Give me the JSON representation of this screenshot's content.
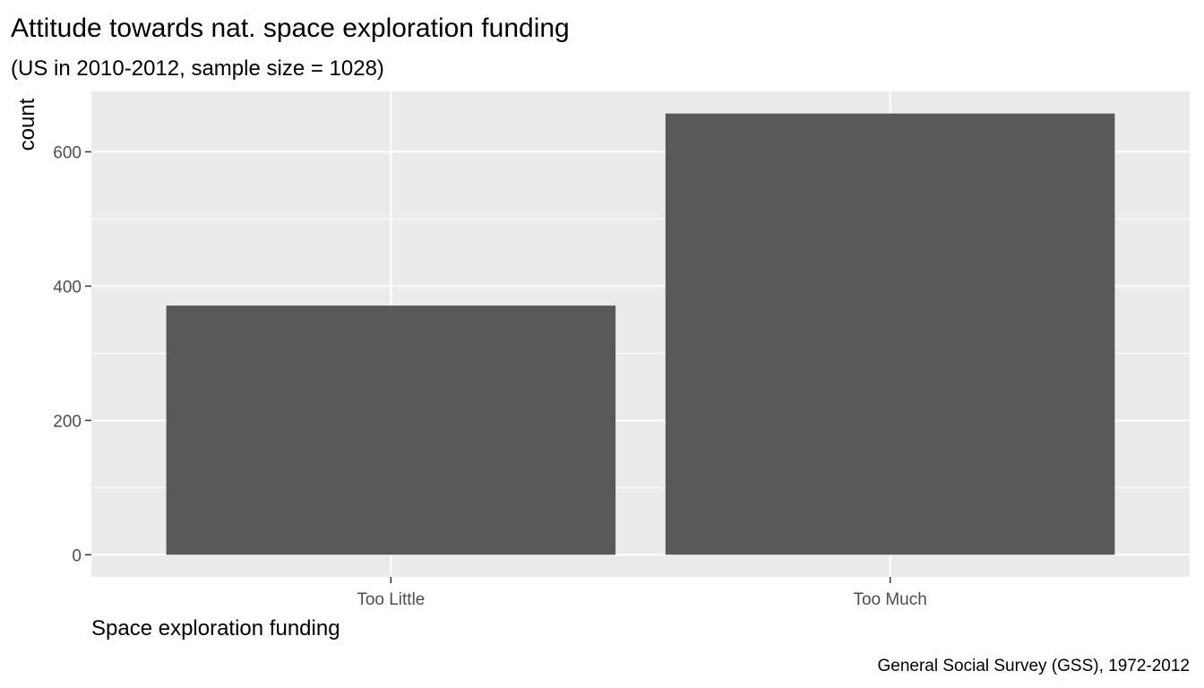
{
  "chart_data": {
    "type": "bar",
    "title": "Attitude towards nat. space exploration funding",
    "subtitle": "(US in 2010-2012, sample size = 1028)",
    "xlabel": "Space exploration funding",
    "ylabel": "count",
    "caption": "General Social Survey (GSS), 1972-2012",
    "categories": [
      "Too Little",
      "Too Much"
    ],
    "values": [
      371,
      657
    ],
    "ylim": [
      -33,
      690
    ],
    "yticks": [
      0,
      200,
      400,
      600
    ],
    "ytick_labels": [
      "0",
      "200",
      "400",
      "600"
    ],
    "grid": true,
    "legend": "none",
    "colors": {
      "bar": "#595959",
      "panel": "#ebebeb",
      "grid": "#ffffff",
      "tick_text": "#4d4d4d",
      "tick_mark": "#333333"
    }
  }
}
